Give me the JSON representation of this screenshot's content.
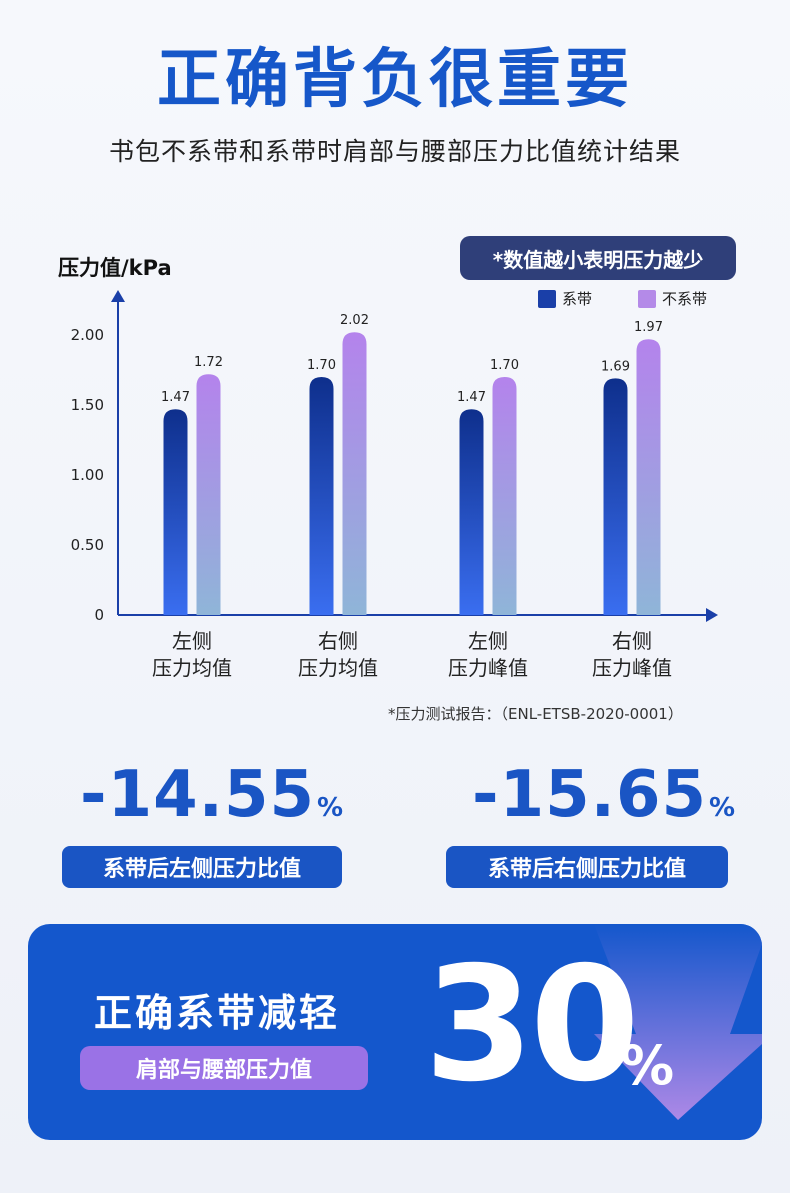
{
  "header": {
    "title": "正确背负很重要",
    "subtitle": "书包不系带和系带时肩部与腰部压力比值统计结果"
  },
  "chart_data": {
    "type": "bar",
    "ylabel": "压力值/kPa",
    "ylim": [
      0,
      2.2
    ],
    "yticks": [
      "0",
      "0.50",
      "1.00",
      "1.50",
      "2.00"
    ],
    "ytick_values": [
      0,
      0.5,
      1.0,
      1.5,
      2.0
    ],
    "categories": [
      [
        "左侧",
        "压力均值"
      ],
      [
        "右侧",
        "压力均值"
      ],
      [
        "左侧",
        "压力峰值"
      ],
      [
        "右侧",
        "压力峰值"
      ]
    ],
    "series": [
      {
        "name": "系带",
        "values": [
          1.47,
          1.7,
          1.47,
          1.69
        ],
        "labels": [
          "1.47",
          "1.70",
          "1.47",
          "1.69"
        ],
        "color": "#1a3fa8"
      },
      {
        "name": "不系带",
        "values": [
          1.72,
          2.02,
          1.7,
          1.97
        ],
        "labels": [
          "1.72",
          "2.02",
          "1.70",
          "1.97"
        ],
        "color": "#b48ae8"
      }
    ],
    "legend_position": "top-right",
    "note": "*数值越小表明压力越少",
    "source": "*压力测试报告：（ENL-ETSB-2020-0001）"
  },
  "stats": [
    {
      "value": "-14.55",
      "unit": "%",
      "label": "系带后左侧压力比值"
    },
    {
      "value": "-15.65",
      "unit": "%",
      "label": "系带后右侧压力比值"
    }
  ],
  "banner": {
    "title": "正确系带减轻",
    "pill": "肩部与腰部压力值",
    "number": "30",
    "unit": "%"
  },
  "colors": {
    "accent": "#1657c9",
    "dark_pill": "#2f3f79",
    "purple": "#9a72e6"
  }
}
